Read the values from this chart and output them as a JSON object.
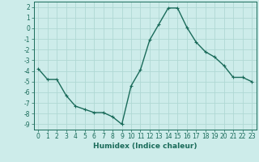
{
  "x": [
    0,
    1,
    2,
    3,
    4,
    5,
    6,
    7,
    8,
    9,
    10,
    11,
    12,
    13,
    14,
    15,
    16,
    17,
    18,
    19,
    20,
    21,
    22,
    23
  ],
  "y": [
    -3.8,
    -4.8,
    -4.8,
    -6.3,
    -7.3,
    -7.6,
    -7.9,
    -7.9,
    -8.3,
    -9.0,
    -5.4,
    -3.9,
    -1.1,
    0.4,
    1.9,
    1.9,
    0.1,
    -1.3,
    -2.2,
    -2.7,
    -3.5,
    -4.6,
    -4.6,
    -5.0
  ],
  "line_color": "#1a6b5a",
  "marker": "+",
  "marker_size": 3,
  "marker_linewidth": 0.8,
  "background_color": "#cdecea",
  "grid_color": "#b0d8d4",
  "xlabel": "Humidex (Indice chaleur)",
  "xlim": [
    -0.5,
    23.5
  ],
  "ylim": [
    -9.5,
    2.5
  ],
  "xticks": [
    0,
    1,
    2,
    3,
    4,
    5,
    6,
    7,
    8,
    9,
    10,
    11,
    12,
    13,
    14,
    15,
    16,
    17,
    18,
    19,
    20,
    21,
    22,
    23
  ],
  "yticks": [
    -9,
    -8,
    -7,
    -6,
    -5,
    -4,
    -3,
    -2,
    -1,
    0,
    1,
    2
  ],
  "tick_fontsize": 5.5,
  "xlabel_fontsize": 6.5,
  "line_width": 1.0
}
